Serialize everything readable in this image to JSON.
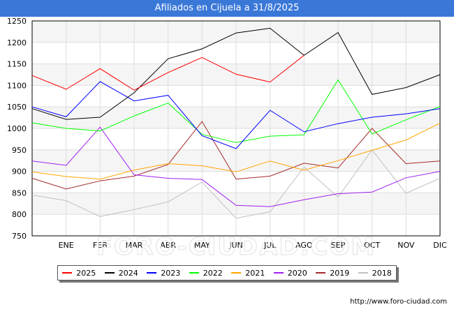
{
  "header": {
    "title": "Afiliados en Cijuela a 31/8/2025"
  },
  "source": "http://www.foro-ciudad.com",
  "watermark": "FORO-CIUDAD.COM",
  "chart_data": {
    "type": "line",
    "title": "Afiliados en Cijuela a 31/8/2025",
    "categories": [
      "",
      "ENE",
      "FEB",
      "MAR",
      "ABR",
      "MAY",
      "JUN",
      "JUL",
      "AGO",
      "SEP",
      "OCT",
      "NOV",
      "DIC"
    ],
    "ylim": [
      750,
      1250
    ],
    "yticks": [
      750,
      800,
      850,
      900,
      950,
      1000,
      1050,
      1100,
      1150,
      1200,
      1250
    ],
    "grid": true,
    "legend_position": "bottom",
    "series": [
      {
        "name": "2025",
        "color": "#ff0000",
        "values": [
          1123,
          1091,
          1139,
          1089,
          1130,
          1165,
          1126,
          1108,
          1170,
          null,
          null,
          null,
          null
        ]
      },
      {
        "name": "2024",
        "color": "#000000",
        "values": [
          1046,
          1021,
          1026,
          1083,
          1162,
          1185,
          1222,
          1233,
          1170,
          1223,
          1079,
          1095,
          1125
        ]
      },
      {
        "name": "2023",
        "color": "#0000ff",
        "values": [
          1050,
          1027,
          1109,
          1064,
          1077,
          983,
          953,
          1042,
          992,
          1011,
          1026,
          1034,
          1046
        ]
      },
      {
        "name": "2022",
        "color": "#00ff00",
        "values": [
          1013,
          1000,
          994,
          1029,
          1059,
          986,
          967,
          982,
          985,
          1113,
          987,
          1020,
          1051
        ]
      },
      {
        "name": "2021",
        "color": "#ffa500",
        "values": [
          899,
          888,
          882,
          903,
          918,
          913,
          899,
          924,
          903,
          925,
          949,
          973,
          1012
        ]
      },
      {
        "name": "2020",
        "color": "#a020f0",
        "values": [
          924,
          914,
          1003,
          892,
          884,
          881,
          821,
          818,
          834,
          848,
          852,
          885,
          900
        ]
      },
      {
        "name": "2019",
        "color": "#a52a2a",
        "values": [
          884,
          859,
          878,
          889,
          916,
          1016,
          882,
          889,
          919,
          908,
          1000,
          918,
          924
        ]
      },
      {
        "name": "2018",
        "color": "#c0c0c0",
        "values": [
          845,
          832,
          795,
          811,
          829,
          875,
          791,
          806,
          910,
          840,
          950,
          849,
          884
        ]
      }
    ]
  }
}
